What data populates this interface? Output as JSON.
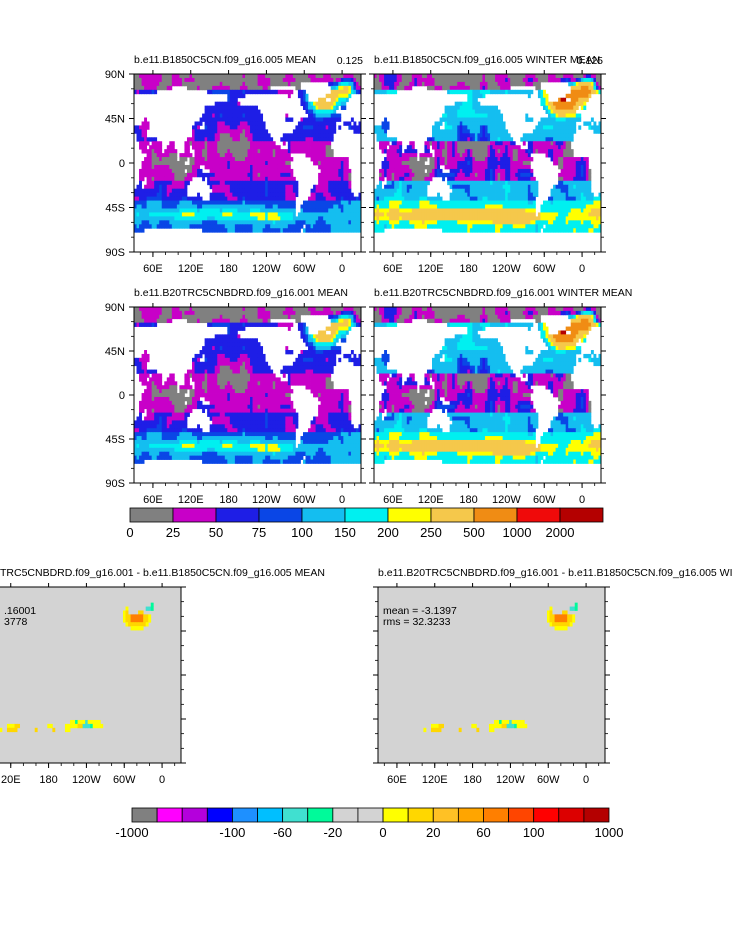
{
  "colors": {
    "land": "#ffffff",
    "land_diff": "#d3d3d3",
    "frame": "#000000"
  },
  "axes": {
    "lat_ticks": [
      "90N",
      "45N",
      "0",
      "45S",
      "90S"
    ],
    "lon_ticks": [
      "60E",
      "120E",
      "180",
      "120W",
      "60W",
      "0"
    ],
    "lon_ticks_cut": [
      "20E",
      "180",
      "120W",
      "60W",
      "0"
    ]
  },
  "chart_data": [
    {
      "type": "heatmap",
      "id": "p1",
      "title": "b.e11.B1850C5CN.f09_g16.005 MEAN",
      "corner_label": "0.125",
      "field": "mean",
      "xlabel": "",
      "ylabel": "",
      "xlim": [
        30,
        390
      ],
      "ylim": [
        -90,
        90
      ]
    },
    {
      "type": "heatmap",
      "id": "p2",
      "title": "b.e11.B1850C5CN.f09_g16.005 WINTER MEAN",
      "corner_label": "0.125",
      "field": "winter",
      "xlim": [
        30,
        390
      ],
      "ylim": [
        -90,
        90
      ]
    },
    {
      "type": "heatmap",
      "id": "p3",
      "title": "b.e11.B20TRC5CNBDRD.f09_g16.001 MEAN",
      "field": "mean",
      "xlim": [
        30,
        390
      ],
      "ylim": [
        -90,
        90
      ]
    },
    {
      "type": "heatmap",
      "id": "p4",
      "title": "b.e11.B20TRC5CNBDRD.f09_g16.001 WINTER MEAN",
      "field": "winter",
      "xlim": [
        30,
        390
      ],
      "ylim": [
        -90,
        90
      ]
    },
    {
      "type": "heatmap",
      "id": "p5",
      "title": "TRC5CNBDRD.f09_g16.001 - b.e11.B1850C5CN.f09_g16.005 MEAN",
      "stats": [
        ".16001",
        "3778"
      ],
      "field": "diff_mean",
      "xlim": [
        30,
        390
      ],
      "ylim": [
        -90,
        90
      ]
    },
    {
      "type": "heatmap",
      "id": "p6",
      "title": "b.e11.B20TRC5CNBDRD.f09_g16.001 - b.e11.B1850C5CN.f09_g16.005 WI",
      "stats": [
        "mean = -3.1397",
        "rms = 32.3233"
      ],
      "mean": -3.1397,
      "rms": 32.3233,
      "field": "diff_winter",
      "xlim": [
        30,
        390
      ],
      "ylim": [
        -90,
        90
      ]
    },
    {
      "type": "colorbar",
      "id": "cb1",
      "labels": [
        "0",
        "25",
        "50",
        "75",
        "100",
        "150",
        "200",
        "250",
        "500",
        "1000",
        "2000"
      ],
      "colors": [
        "#808080",
        "#c800c8",
        "#1e1ee6",
        "#0a46e6",
        "#14bef0",
        "#00f0f0",
        "#ffff00",
        "#f5c84b",
        "#f08c14",
        "#f00a0a",
        "#b40000"
      ]
    },
    {
      "type": "colorbar",
      "id": "cb2",
      "labels": [
        "-1000",
        "-100",
        "-60",
        "-20",
        "0",
        "20",
        "60",
        "100",
        "1000"
      ],
      "colors": [
        "#808080",
        "#ff00ff",
        "#b400dc",
        "#0000ff",
        "#1e90ff",
        "#00bfff",
        "#40e0d0",
        "#00fa9a",
        "#d3d3d3",
        "#d3d3d3",
        "#ffff00",
        "#ffd700",
        "#ffc125",
        "#ffa500",
        "#ff7f00",
        "#ff4500",
        "#ff0000",
        "#dc0000",
        "#b40000"
      ]
    }
  ]
}
